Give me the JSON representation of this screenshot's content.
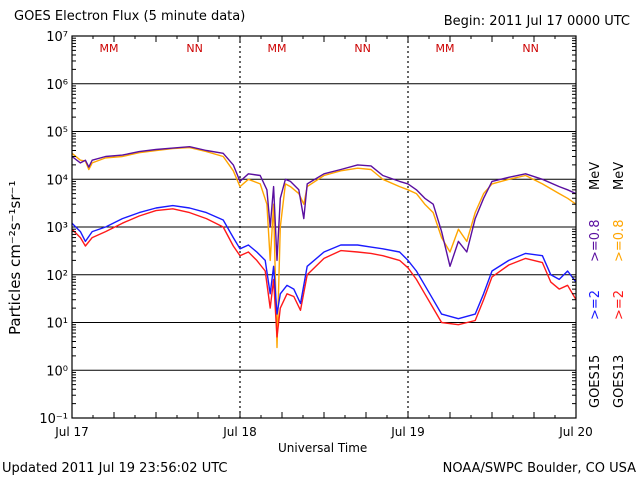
{
  "header": {
    "title": "GOES Electron Flux (5 minute data)",
    "begin": "Begin: 2011 Jul 17 0000 UTC"
  },
  "footer": {
    "updated": "Updated 2011 Jul 19 23:56:02 UTC",
    "credit": "NOAA/SWPC Boulder, CO USA"
  },
  "colors": {
    "goes15_2mev": "#1a1aff",
    "goes13_2mev": "#ff1a1a",
    "goes15_08mev": "#5a0fa0",
    "goes13_08mev": "#ffa500"
  },
  "chart_data": {
    "type": "line",
    "title": "GOES Electron Flux (5 minute data)",
    "xlabel": "Universal Time",
    "ylabel_text": "Particles cm⁻²s⁻¹sr⁻¹",
    "y_scale": "log",
    "ylim": [
      0.1,
      10000000
    ],
    "xlim_days": [
      0,
      3
    ],
    "x_ticks": [
      {
        "day": 0,
        "label": "Jul 17"
      },
      {
        "day": 1,
        "label": "Jul 18"
      },
      {
        "day": 2,
        "label": "Jul 19"
      },
      {
        "day": 3,
        "label": "Jul 20"
      }
    ],
    "y_ticks": [
      {
        "exp": 7,
        "label": "10⁷"
      },
      {
        "exp": 6,
        "label": "10⁶"
      },
      {
        "exp": 5,
        "label": "10⁵"
      },
      {
        "exp": 4,
        "label": "10⁴"
      },
      {
        "exp": 3,
        "label": "10³"
      },
      {
        "exp": 2,
        "label": "10²"
      },
      {
        "exp": 1,
        "label": "10¹"
      },
      {
        "exp": 0,
        "label": "10⁰"
      },
      {
        "exp": -1,
        "label": "10⁻¹"
      }
    ],
    "threshold": {
      "value": 1000,
      "style": "dashed"
    },
    "markers": [
      {
        "day": 0.22,
        "label": "MM",
        "color": "#cc0000"
      },
      {
        "day": 0.73,
        "label": "NN",
        "color": "#cc0000"
      },
      {
        "day": 1.22,
        "label": "MM",
        "color": "#cc0000"
      },
      {
        "day": 1.73,
        "label": "NN",
        "color": "#cc0000"
      },
      {
        "day": 2.22,
        "label": "MM",
        "color": "#cc0000"
      },
      {
        "day": 2.73,
        "label": "NN",
        "color": "#cc0000"
      }
    ],
    "series": [
      {
        "name": "GOES15 >=0.8 MeV",
        "color": "#5a0fa0",
        "points": [
          [
            0,
            30000
          ],
          [
            0.05,
            22000
          ],
          [
            0.08,
            25000
          ],
          [
            0.1,
            18000
          ],
          [
            0.12,
            25000
          ],
          [
            0.2,
            30000
          ],
          [
            0.3,
            32000
          ],
          [
            0.4,
            38000
          ],
          [
            0.5,
            42000
          ],
          [
            0.6,
            45000
          ],
          [
            0.7,
            48000
          ],
          [
            0.8,
            40000
          ],
          [
            0.9,
            35000
          ],
          [
            0.96,
            20000
          ],
          [
            1.0,
            9000
          ],
          [
            1.05,
            13000
          ],
          [
            1.12,
            12000
          ],
          [
            1.16,
            6000
          ],
          [
            1.18,
            1000
          ],
          [
            1.2,
            7000
          ],
          [
            1.22,
            200
          ],
          [
            1.24,
            4000
          ],
          [
            1.27,
            10000
          ],
          [
            1.3,
            9000
          ],
          [
            1.35,
            6000
          ],
          [
            1.38,
            1500
          ],
          [
            1.4,
            8000
          ],
          [
            1.5,
            13000
          ],
          [
            1.6,
            16000
          ],
          [
            1.7,
            20000
          ],
          [
            1.78,
            19000
          ],
          [
            1.85,
            12000
          ],
          [
            1.95,
            9000
          ],
          [
            2.0,
            8000
          ],
          [
            2.05,
            6000
          ],
          [
            2.1,
            4000
          ],
          [
            2.15,
            3000
          ],
          [
            2.2,
            800
          ],
          [
            2.25,
            150
          ],
          [
            2.3,
            500
          ],
          [
            2.35,
            300
          ],
          [
            2.4,
            1500
          ],
          [
            2.45,
            4000
          ],
          [
            2.5,
            9000
          ],
          [
            2.6,
            11000
          ],
          [
            2.7,
            13000
          ],
          [
            2.8,
            10000
          ],
          [
            2.9,
            7000
          ],
          [
            2.95,
            6000
          ],
          [
            3.0,
            5000
          ]
        ]
      },
      {
        "name": "GOES13 >=0.8 MeV",
        "color": "#ffa500",
        "points": [
          [
            0,
            35000
          ],
          [
            0.05,
            25000
          ],
          [
            0.08,
            24000
          ],
          [
            0.1,
            16000
          ],
          [
            0.12,
            22000
          ],
          [
            0.2,
            28000
          ],
          [
            0.3,
            30000
          ],
          [
            0.4,
            36000
          ],
          [
            0.5,
            40000
          ],
          [
            0.6,
            44000
          ],
          [
            0.7,
            46000
          ],
          [
            0.8,
            38000
          ],
          [
            0.9,
            30000
          ],
          [
            0.96,
            15000
          ],
          [
            1.0,
            7000
          ],
          [
            1.05,
            10000
          ],
          [
            1.12,
            8000
          ],
          [
            1.16,
            3000
          ],
          [
            1.18,
            200
          ],
          [
            1.2,
            3000
          ],
          [
            1.22,
            3
          ],
          [
            1.24,
            1000
          ],
          [
            1.27,
            8000
          ],
          [
            1.3,
            7000
          ],
          [
            1.35,
            5000
          ],
          [
            1.38,
            3000
          ],
          [
            1.4,
            7000
          ],
          [
            1.5,
            12000
          ],
          [
            1.6,
            15000
          ],
          [
            1.7,
            17000
          ],
          [
            1.78,
            16000
          ],
          [
            1.85,
            10000
          ],
          [
            1.95,
            7000
          ],
          [
            2.0,
            6000
          ],
          [
            2.05,
            5000
          ],
          [
            2.1,
            3000
          ],
          [
            2.15,
            2000
          ],
          [
            2.2,
            600
          ],
          [
            2.25,
            300
          ],
          [
            2.3,
            900
          ],
          [
            2.35,
            500
          ],
          [
            2.4,
            2000
          ],
          [
            2.45,
            5000
          ],
          [
            2.5,
            8000
          ],
          [
            2.6,
            10000
          ],
          [
            2.7,
            12000
          ],
          [
            2.8,
            8000
          ],
          [
            2.9,
            5000
          ],
          [
            2.95,
            4000
          ],
          [
            3.0,
            3000
          ]
        ]
      },
      {
        "name": "GOES15 >=2 MeV",
        "color": "#1a1aff",
        "points": [
          [
            0,
            1200
          ],
          [
            0.05,
            800
          ],
          [
            0.08,
            500
          ],
          [
            0.12,
            800
          ],
          [
            0.2,
            1000
          ],
          [
            0.3,
            1500
          ],
          [
            0.4,
            2000
          ],
          [
            0.5,
            2500
          ],
          [
            0.6,
            2800
          ],
          [
            0.7,
            2500
          ],
          [
            0.8,
            2000
          ],
          [
            0.9,
            1400
          ],
          [
            0.96,
            600
          ],
          [
            1.0,
            350
          ],
          [
            1.05,
            420
          ],
          [
            1.1,
            300
          ],
          [
            1.15,
            200
          ],
          [
            1.18,
            40
          ],
          [
            1.2,
            150
          ],
          [
            1.22,
            15
          ],
          [
            1.24,
            40
          ],
          [
            1.28,
            60
          ],
          [
            1.32,
            50
          ],
          [
            1.36,
            25
          ],
          [
            1.4,
            150
          ],
          [
            1.5,
            300
          ],
          [
            1.6,
            420
          ],
          [
            1.7,
            420
          ],
          [
            1.78,
            380
          ],
          [
            1.85,
            350
          ],
          [
            1.95,
            300
          ],
          [
            2.0,
            200
          ],
          [
            2.05,
            120
          ],
          [
            2.1,
            60
          ],
          [
            2.15,
            30
          ],
          [
            2.2,
            15
          ],
          [
            2.3,
            12
          ],
          [
            2.4,
            15
          ],
          [
            2.45,
            40
          ],
          [
            2.5,
            120
          ],
          [
            2.6,
            200
          ],
          [
            2.7,
            280
          ],
          [
            2.8,
            250
          ],
          [
            2.85,
            100
          ],
          [
            2.9,
            80
          ],
          [
            2.95,
            120
          ],
          [
            3.0,
            70
          ]
        ]
      },
      {
        "name": "GOES13 >=2 MeV",
        "color": "#ff1a1a",
        "points": [
          [
            0,
            900
          ],
          [
            0.05,
            600
          ],
          [
            0.08,
            400
          ],
          [
            0.12,
            600
          ],
          [
            0.2,
            800
          ],
          [
            0.3,
            1200
          ],
          [
            0.4,
            1700
          ],
          [
            0.5,
            2200
          ],
          [
            0.6,
            2400
          ],
          [
            0.7,
            2000
          ],
          [
            0.8,
            1500
          ],
          [
            0.9,
            1000
          ],
          [
            0.96,
            400
          ],
          [
            1.0,
            250
          ],
          [
            1.05,
            300
          ],
          [
            1.1,
            200
          ],
          [
            1.15,
            120
          ],
          [
            1.18,
            20
          ],
          [
            1.2,
            80
          ],
          [
            1.22,
            5
          ],
          [
            1.24,
            20
          ],
          [
            1.28,
            40
          ],
          [
            1.32,
            35
          ],
          [
            1.36,
            18
          ],
          [
            1.4,
            100
          ],
          [
            1.5,
            220
          ],
          [
            1.6,
            320
          ],
          [
            1.7,
            300
          ],
          [
            1.78,
            280
          ],
          [
            1.85,
            250
          ],
          [
            1.95,
            200
          ],
          [
            2.0,
            140
          ],
          [
            2.05,
            80
          ],
          [
            2.1,
            40
          ],
          [
            2.15,
            20
          ],
          [
            2.2,
            10
          ],
          [
            2.3,
            9
          ],
          [
            2.4,
            11
          ],
          [
            2.45,
            30
          ],
          [
            2.5,
            90
          ],
          [
            2.6,
            160
          ],
          [
            2.7,
            220
          ],
          [
            2.8,
            180
          ],
          [
            2.85,
            70
          ],
          [
            2.9,
            50
          ],
          [
            2.95,
            60
          ],
          [
            3.0,
            30
          ]
        ]
      }
    ],
    "legend": {
      "placement": "right",
      "entries": [
        {
          "label": "GOES15",
          "color": "#000000"
        },
        {
          "label": ">=2",
          "color": "#1a1aff"
        },
        {
          "label": ">=0.8",
          "color": "#5a0fa0"
        },
        {
          "label": "MeV",
          "color": "#000000"
        },
        {
          "label": "GOES13",
          "color": "#000000"
        },
        {
          "label": ">=2",
          "color": "#ff1a1a"
        },
        {
          "label": ">=0.8",
          "color": "#ffa500"
        },
        {
          "label": "MeV",
          "color": "#000000"
        }
      ]
    }
  }
}
